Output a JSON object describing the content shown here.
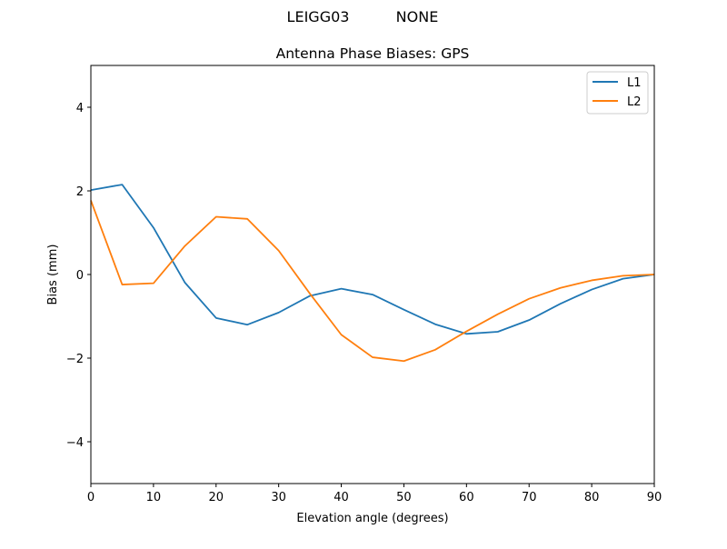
{
  "chart_data": {
    "type": "line",
    "suptitle_left": "LEIGG03",
    "suptitle_right": "NONE",
    "title": "Antenna Phase Biases: GPS",
    "xlabel": "Elevation angle (degrees)",
    "ylabel": "Bias (mm)",
    "xlim": [
      0,
      90
    ],
    "ylim": [
      -5,
      5
    ],
    "xticks": [
      0,
      10,
      20,
      30,
      40,
      50,
      60,
      70,
      80,
      90
    ],
    "yticks": [
      -4,
      -2,
      0,
      2,
      4
    ],
    "ytick_labels": [
      "−4",
      "−2",
      "0",
      "2",
      "4"
    ],
    "grid": false,
    "legend_position": "top-right",
    "x": [
      0,
      5,
      10,
      15,
      20,
      25,
      30,
      35,
      40,
      45,
      50,
      55,
      60,
      65,
      70,
      75,
      80,
      85,
      90
    ],
    "series": [
      {
        "name": "L1",
        "color": "#1f77b4",
        "values": [
          2.02,
          2.15,
          1.12,
          -0.19,
          -1.04,
          -1.2,
          -0.91,
          -0.51,
          -0.34,
          -0.48,
          -0.84,
          -1.19,
          -1.42,
          -1.37,
          -1.09,
          -0.7,
          -0.36,
          -0.1,
          0.0
        ]
      },
      {
        "name": "L2",
        "color": "#ff7f0e",
        "values": [
          1.77,
          -0.24,
          -0.21,
          0.68,
          1.38,
          1.33,
          0.57,
          -0.46,
          -1.44,
          -1.98,
          -2.07,
          -1.8,
          -1.36,
          -0.95,
          -0.58,
          -0.32,
          -0.14,
          -0.03,
          0.0
        ]
      }
    ]
  }
}
